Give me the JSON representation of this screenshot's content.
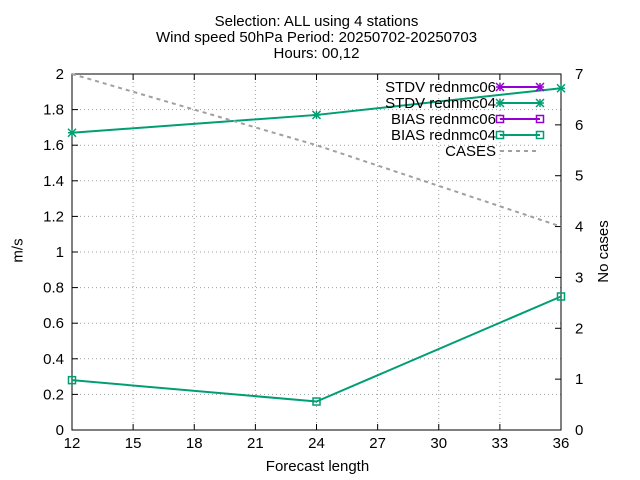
{
  "chart_data": {
    "type": "line",
    "title_lines": [
      "Selection: ALL using     4 stations",
      "Wind speed 50hPa   Period: 20250702-20250703",
      "Hours: 00,12"
    ],
    "xlabel": "Forecast length",
    "ylabel": "m/s",
    "y2label": "No cases",
    "x": [
      12,
      24,
      36
    ],
    "xlim": [
      12,
      36
    ],
    "xticks": [
      12,
      15,
      18,
      21,
      24,
      27,
      30,
      33,
      36
    ],
    "ylim": [
      0,
      2
    ],
    "yticks": [
      0,
      0.2,
      0.4,
      0.6,
      0.8,
      1,
      1.2,
      1.4,
      1.6,
      1.8,
      2
    ],
    "y2lim": [
      0,
      7
    ],
    "y2ticks": [
      0,
      1,
      2,
      3,
      4,
      5,
      6,
      7
    ],
    "grid": true,
    "legend_position": "top-right",
    "series": [
      {
        "name": "STDV rednmc06",
        "axis": "left",
        "values": [
          null,
          null,
          null
        ],
        "color": "#9400d3",
        "marker": "star"
      },
      {
        "name": "STDV rednmc04",
        "axis": "left",
        "values": [
          1.67,
          1.77,
          1.92
        ],
        "color": "#009e73",
        "marker": "star"
      },
      {
        "name": "BIAS rednmc06",
        "axis": "left",
        "values": [
          null,
          null,
          null
        ],
        "color": "#9400d3",
        "marker": "square"
      },
      {
        "name": "BIAS rednmc04",
        "axis": "left",
        "values": [
          0.28,
          0.16,
          0.75
        ],
        "color": "#009e73",
        "marker": "square"
      },
      {
        "name": "CASES",
        "axis": "right",
        "values": [
          7,
          5.6,
          4
        ],
        "color": "#a0a0a0",
        "marker": "none",
        "dashed": true
      }
    ]
  }
}
